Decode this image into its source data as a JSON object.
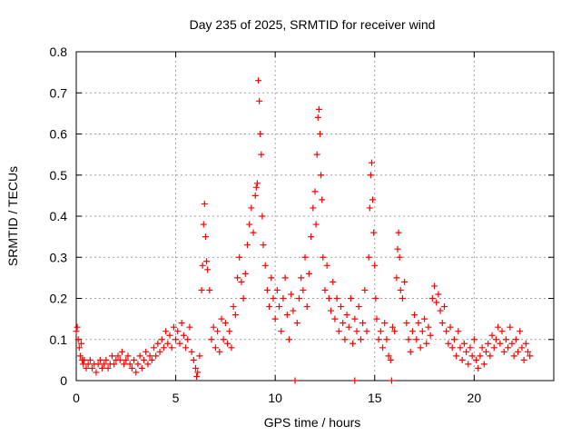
{
  "chart_data": {
    "type": "scatter",
    "title": "Day 235 of 2025, SRMTID for receiver wind",
    "xlabel": "GPS time / hours",
    "ylabel": "SRMTID / TECUs",
    "xlim": [
      0,
      24
    ],
    "ylim": [
      0,
      0.8
    ],
    "xticks": [
      0,
      5,
      10,
      15,
      20
    ],
    "yticks": [
      0,
      0.1,
      0.2,
      0.3,
      0.4,
      0.5,
      0.6,
      0.7,
      0.8
    ],
    "grid": true,
    "marker": "+",
    "color": "#ff0000",
    "series": [
      {
        "name": "SRMTID",
        "points": [
          [
            0.0,
            0.12
          ],
          [
            0.05,
            0.13
          ],
          [
            0.1,
            0.1
          ],
          [
            0.15,
            0.08
          ],
          [
            0.2,
            0.06
          ],
          [
            0.25,
            0.09
          ],
          [
            0.3,
            0.05
          ],
          [
            0.35,
            0.04
          ],
          [
            0.4,
            0.05
          ],
          [
            0.5,
            0.03
          ],
          [
            0.6,
            0.04
          ],
          [
            0.7,
            0.05
          ],
          [
            0.8,
            0.03
          ],
          [
            0.9,
            0.04
          ],
          [
            1.0,
            0.02
          ],
          [
            1.1,
            0.04
          ],
          [
            1.2,
            0.05
          ],
          [
            1.3,
            0.03
          ],
          [
            1.4,
            0.04
          ],
          [
            1.5,
            0.05
          ],
          [
            1.6,
            0.03
          ],
          [
            1.7,
            0.04
          ],
          [
            1.8,
            0.06
          ],
          [
            1.9,
            0.04
          ],
          [
            2.0,
            0.05
          ],
          [
            2.1,
            0.06
          ],
          [
            2.2,
            0.05
          ],
          [
            2.3,
            0.07
          ],
          [
            2.4,
            0.04
          ],
          [
            2.5,
            0.05
          ],
          [
            2.6,
            0.06
          ],
          [
            2.7,
            0.04
          ],
          [
            2.8,
            0.03
          ],
          [
            2.9,
            0.05
          ],
          [
            3.0,
            0.02
          ],
          [
            3.1,
            0.04
          ],
          [
            3.2,
            0.06
          ],
          [
            3.3,
            0.03
          ],
          [
            3.4,
            0.05
          ],
          [
            3.5,
            0.07
          ],
          [
            3.6,
            0.04
          ],
          [
            3.7,
            0.06
          ],
          [
            3.8,
            0.05
          ],
          [
            3.9,
            0.08
          ],
          [
            4.0,
            0.06
          ],
          [
            4.1,
            0.09
          ],
          [
            4.2,
            0.07
          ],
          [
            4.3,
            0.1
          ],
          [
            4.4,
            0.08
          ],
          [
            4.5,
            0.12
          ],
          [
            4.6,
            0.09
          ],
          [
            4.7,
            0.11
          ],
          [
            4.8,
            0.08
          ],
          [
            4.9,
            0.13
          ],
          [
            5.0,
            0.1
          ],
          [
            5.1,
            0.12
          ],
          [
            5.2,
            0.09
          ],
          [
            5.3,
            0.14
          ],
          [
            5.4,
            0.11
          ],
          [
            5.5,
            0.08
          ],
          [
            5.6,
            0.1
          ],
          [
            5.7,
            0.13
          ],
          [
            5.8,
            0.07
          ],
          [
            5.9,
            0.05
          ],
          [
            6.0,
            0.03
          ],
          [
            6.05,
            0.01
          ],
          [
            6.1,
            0.02
          ],
          [
            6.2,
            0.06
          ],
          [
            6.3,
            0.22
          ],
          [
            6.35,
            0.28
          ],
          [
            6.4,
            0.38
          ],
          [
            6.45,
            0.43
          ],
          [
            6.5,
            0.35
          ],
          [
            6.55,
            0.29
          ],
          [
            6.6,
            0.27
          ],
          [
            6.7,
            0.22
          ],
          [
            6.8,
            0.1
          ],
          [
            6.9,
            0.13
          ],
          [
            7.0,
            0.08
          ],
          [
            7.1,
            0.12
          ],
          [
            7.2,
            0.07
          ],
          [
            7.3,
            0.15
          ],
          [
            7.4,
            0.1
          ],
          [
            7.5,
            0.14
          ],
          [
            7.6,
            0.09
          ],
          [
            7.7,
            0.12
          ],
          [
            7.8,
            0.08
          ],
          [
            7.9,
            0.18
          ],
          [
            8.0,
            0.16
          ],
          [
            8.1,
            0.25
          ],
          [
            8.2,
            0.3
          ],
          [
            8.3,
            0.24
          ],
          [
            8.4,
            0.2
          ],
          [
            8.5,
            0.26
          ],
          [
            8.6,
            0.33
          ],
          [
            8.7,
            0.38
          ],
          [
            8.8,
            0.42
          ],
          [
            8.9,
            0.36
          ],
          [
            9.0,
            0.45
          ],
          [
            9.05,
            0.47
          ],
          [
            9.1,
            0.48
          ],
          [
            9.15,
            0.73
          ],
          [
            9.2,
            0.68
          ],
          [
            9.25,
            0.6
          ],
          [
            9.3,
            0.55
          ],
          [
            9.35,
            0.4
          ],
          [
            9.4,
            0.33
          ],
          [
            9.5,
            0.28
          ],
          [
            9.6,
            0.22
          ],
          [
            9.7,
            0.18
          ],
          [
            9.8,
            0.25
          ],
          [
            9.9,
            0.2
          ],
          [
            10.0,
            0.15
          ],
          [
            10.1,
            0.22
          ],
          [
            10.2,
            0.18
          ],
          [
            10.3,
            0.12
          ],
          [
            10.4,
            0.2
          ],
          [
            10.5,
            0.25
          ],
          [
            10.6,
            0.16
          ],
          [
            10.7,
            0.1
          ],
          [
            10.8,
            0.21
          ],
          [
            10.9,
            0.17
          ],
          [
            11.0,
            0.0
          ],
          [
            11.1,
            0.14
          ],
          [
            11.2,
            0.2
          ],
          [
            11.3,
            0.25
          ],
          [
            11.4,
            0.22
          ],
          [
            11.5,
            0.3
          ],
          [
            11.6,
            0.18
          ],
          [
            11.7,
            0.26
          ],
          [
            11.8,
            0.35
          ],
          [
            11.9,
            0.42
          ],
          [
            12.0,
            0.46
          ],
          [
            12.05,
            0.38
          ],
          [
            12.1,
            0.55
          ],
          [
            12.15,
            0.64
          ],
          [
            12.2,
            0.66
          ],
          [
            12.25,
            0.6
          ],
          [
            12.3,
            0.5
          ],
          [
            12.35,
            0.44
          ],
          [
            12.4,
            0.3
          ],
          [
            12.5,
            0.22
          ],
          [
            12.6,
            0.28
          ],
          [
            12.7,
            0.2
          ],
          [
            12.8,
            0.17
          ],
          [
            12.9,
            0.24
          ],
          [
            13.0,
            0.15
          ],
          [
            13.1,
            0.2
          ],
          [
            13.2,
            0.12
          ],
          [
            13.3,
            0.18
          ],
          [
            13.4,
            0.14
          ],
          [
            13.5,
            0.1
          ],
          [
            13.6,
            0.16
          ],
          [
            13.7,
            0.13
          ],
          [
            13.8,
            0.2
          ],
          [
            13.9,
            0.09
          ],
          [
            14.0,
            0.15
          ],
          [
            14.0,
            0.0
          ],
          [
            14.1,
            0.12
          ],
          [
            14.2,
            0.18
          ],
          [
            14.3,
            0.1
          ],
          [
            14.4,
            0.14
          ],
          [
            14.5,
            0.22
          ],
          [
            14.6,
            0.12
          ],
          [
            14.7,
            0.3
          ],
          [
            14.75,
            0.42
          ],
          [
            14.8,
            0.5
          ],
          [
            14.85,
            0.53
          ],
          [
            14.9,
            0.44
          ],
          [
            14.95,
            0.36
          ],
          [
            15.0,
            0.28
          ],
          [
            15.05,
            0.2
          ],
          [
            15.1,
            0.15
          ],
          [
            15.2,
            0.1
          ],
          [
            15.3,
            0.12
          ],
          [
            15.4,
            0.08
          ],
          [
            15.5,
            0.14
          ],
          [
            15.6,
            0.1
          ],
          [
            15.7,
            0.06
          ],
          [
            15.8,
            0.05
          ],
          [
            15.85,
            0.0
          ],
          [
            15.9,
            0.13
          ],
          [
            16.0,
            0.12
          ],
          [
            16.1,
            0.25
          ],
          [
            16.15,
            0.32
          ],
          [
            16.2,
            0.36
          ],
          [
            16.25,
            0.3
          ],
          [
            16.3,
            0.22
          ],
          [
            16.4,
            0.2
          ],
          [
            16.5,
            0.24
          ],
          [
            16.6,
            0.14
          ],
          [
            16.7,
            0.1
          ],
          [
            16.8,
            0.07
          ],
          [
            16.9,
            0.12
          ],
          [
            17.0,
            0.16
          ],
          [
            17.1,
            0.1
          ],
          [
            17.2,
            0.14
          ],
          [
            17.3,
            0.08
          ],
          [
            17.4,
            0.12
          ],
          [
            17.5,
            0.15
          ],
          [
            17.6,
            0.09
          ],
          [
            17.7,
            0.13
          ],
          [
            17.8,
            0.11
          ],
          [
            17.9,
            0.2
          ],
          [
            18.0,
            0.23
          ],
          [
            18.1,
            0.19
          ],
          [
            18.2,
            0.21
          ],
          [
            18.3,
            0.17
          ],
          [
            18.4,
            0.14
          ],
          [
            18.5,
            0.18
          ],
          [
            18.6,
            0.12
          ],
          [
            18.7,
            0.09
          ],
          [
            18.8,
            0.13
          ],
          [
            18.9,
            0.08
          ],
          [
            19.0,
            0.1
          ],
          [
            19.1,
            0.06
          ],
          [
            19.2,
            0.12
          ],
          [
            19.3,
            0.08
          ],
          [
            19.4,
            0.05
          ],
          [
            19.5,
            0.09
          ],
          [
            19.6,
            0.07
          ],
          [
            19.7,
            0.04
          ],
          [
            19.8,
            0.08
          ],
          [
            19.9,
            0.06
          ],
          [
            20.0,
            0.1
          ],
          [
            20.1,
            0.05
          ],
          [
            20.2,
            0.03
          ],
          [
            20.3,
            0.06
          ],
          [
            20.4,
            0.08
          ],
          [
            20.5,
            0.04
          ],
          [
            20.6,
            0.07
          ],
          [
            20.7,
            0.09
          ],
          [
            20.8,
            0.06
          ],
          [
            20.9,
            0.11
          ],
          [
            21.0,
            0.08
          ],
          [
            21.1,
            0.1
          ],
          [
            21.2,
            0.13
          ],
          [
            21.3,
            0.09
          ],
          [
            21.4,
            0.12
          ],
          [
            21.5,
            0.07
          ],
          [
            21.6,
            0.1
          ],
          [
            21.7,
            0.08
          ],
          [
            21.8,
            0.13
          ],
          [
            21.9,
            0.09
          ],
          [
            22.0,
            0.06
          ],
          [
            22.1,
            0.1
          ],
          [
            22.2,
            0.07
          ],
          [
            22.3,
            0.12
          ],
          [
            22.4,
            0.08
          ],
          [
            22.5,
            0.05
          ],
          [
            22.6,
            0.09
          ],
          [
            22.7,
            0.07
          ],
          [
            22.8,
            0.06
          ]
        ]
      }
    ]
  }
}
